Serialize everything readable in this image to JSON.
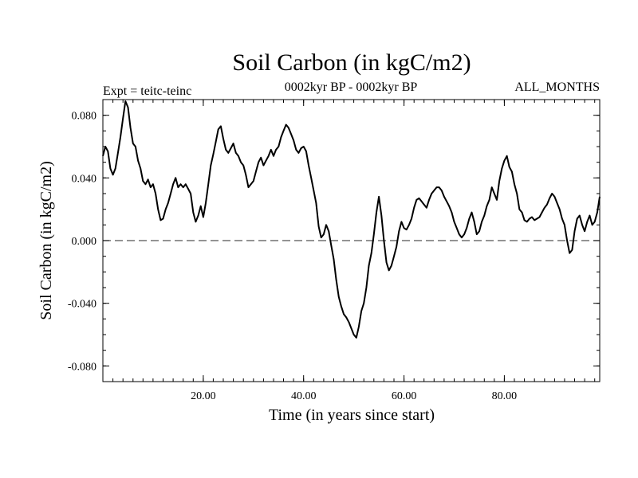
{
  "chart_data": {
    "type": "line",
    "title": "Soil Carbon (in kgC/m2)",
    "subtitle": "0002kyr BP - 0002kyr BP",
    "left_label": "Expt = teitc-teinc",
    "right_label": "ALL_MONTHS",
    "xlabel": "Time (in years since start)",
    "ylabel": "Soil Carbon (in kgC/m2)",
    "xlim": [
      0,
      99
    ],
    "ylim": [
      -0.09,
      0.09
    ],
    "x_major_ticks": [
      20,
      40,
      60,
      80
    ],
    "x_tick_labels": [
      "20.00",
      "40.00",
      "60.00",
      "80.00"
    ],
    "y_major_ticks": [
      0.08,
      0.04,
      0.0,
      -0.04,
      -0.08
    ],
    "y_tick_labels": [
      "0.080",
      "0.040",
      "0.000",
      "-0.040",
      "-0.080"
    ],
    "reference_line": {
      "y": 0.0,
      "style": "dashed"
    },
    "series": [
      {
        "name": "Soil Carbon",
        "x": [
          0,
          0.5,
          1,
          1.5,
          2,
          2.5,
          3,
          3.5,
          4,
          4.5,
          5,
          5.5,
          6,
          6.5,
          7,
          7.5,
          8,
          8.5,
          9,
          9.5,
          10,
          10.5,
          11,
          11.5,
          12,
          12.5,
          13,
          13.5,
          14,
          14.5,
          15,
          15.5,
          16,
          16.5,
          17,
          17.5,
          18,
          18.5,
          19,
          19.5,
          20,
          20.5,
          21,
          21.5,
          22,
          22.5,
          23,
          23.5,
          24,
          24.5,
          25,
          25.5,
          26,
          26.5,
          27,
          27.5,
          28,
          28.5,
          29,
          29.5,
          30,
          30.5,
          31,
          31.5,
          32,
          32.5,
          33,
          33.5,
          34,
          34.5,
          35,
          35.5,
          36,
          36.5,
          37,
          37.5,
          38,
          38.5,
          39,
          39.5,
          40,
          40.5,
          41,
          41.5,
          42,
          42.5,
          43,
          43.5,
          44,
          44.5,
          45,
          45.5,
          46,
          46.5,
          47,
          47.5,
          48,
          48.5,
          49,
          49.5,
          50,
          50.5,
          51,
          51.5,
          52,
          52.5,
          53,
          53.5,
          54,
          54.5,
          55,
          55.5,
          56,
          56.5,
          57,
          57.5,
          58,
          58.5,
          59,
          59.5,
          60,
          60.5,
          61,
          61.5,
          62,
          62.5,
          63,
          63.5,
          64,
          64.5,
          65,
          65.5,
          66,
          66.5,
          67,
          67.5,
          68,
          68.5,
          69,
          69.5,
          70,
          70.5,
          71,
          71.5,
          72,
          72.5,
          73,
          73.5,
          74,
          74.5,
          75,
          75.5,
          76,
          76.5,
          77,
          77.5,
          78,
          78.5,
          79,
          79.5,
          80,
          80.5,
          81,
          81.5,
          82,
          82.5,
          83,
          83.5,
          84,
          84.5,
          85,
          85.5,
          86,
          86.5,
          87,
          87.5,
          88,
          88.5,
          89,
          89.5,
          90,
          90.5,
          91,
          91.5,
          92,
          92.5,
          93,
          93.5,
          94,
          94.5,
          95,
          95.5,
          96,
          96.5,
          97,
          97.5,
          98,
          98.5,
          99
        ],
        "y": [
          0.054,
          0.06,
          0.057,
          0.046,
          0.042,
          0.046,
          0.056,
          0.066,
          0.078,
          0.089,
          0.085,
          0.072,
          0.062,
          0.06,
          0.051,
          0.046,
          0.038,
          0.036,
          0.039,
          0.034,
          0.036,
          0.03,
          0.02,
          0.013,
          0.014,
          0.02,
          0.024,
          0.03,
          0.036,
          0.04,
          0.034,
          0.036,
          0.034,
          0.036,
          0.033,
          0.03,
          0.018,
          0.012,
          0.016,
          0.022,
          0.015,
          0.024,
          0.036,
          0.048,
          0.055,
          0.063,
          0.071,
          0.073,
          0.065,
          0.058,
          0.056,
          0.059,
          0.062,
          0.056,
          0.054,
          0.05,
          0.048,
          0.042,
          0.034,
          0.036,
          0.038,
          0.044,
          0.05,
          0.053,
          0.048,
          0.051,
          0.054,
          0.058,
          0.054,
          0.058,
          0.06,
          0.066,
          0.07,
          0.074,
          0.072,
          0.068,
          0.064,
          0.058,
          0.056,
          0.059,
          0.06,
          0.057,
          0.048,
          0.04,
          0.032,
          0.024,
          0.009,
          0.002,
          0.004,
          0.01,
          0.006,
          -0.003,
          -0.012,
          -0.025,
          -0.036,
          -0.042,
          -0.047,
          -0.049,
          -0.052,
          -0.056,
          -0.06,
          -0.062,
          -0.055,
          -0.045,
          -0.04,
          -0.03,
          -0.016,
          -0.008,
          0.004,
          0.018,
          0.028,
          0.016,
          0.0,
          -0.014,
          -0.019,
          -0.016,
          -0.01,
          -0.004,
          0.006,
          0.012,
          0.008,
          0.007,
          0.01,
          0.014,
          0.021,
          0.026,
          0.027,
          0.025,
          0.023,
          0.021,
          0.026,
          0.03,
          0.032,
          0.034,
          0.034,
          0.032,
          0.028,
          0.025,
          0.022,
          0.018,
          0.012,
          0.008,
          0.004,
          0.002,
          0.004,
          0.008,
          0.014,
          0.018,
          0.012,
          0.004,
          0.006,
          0.012,
          0.016,
          0.022,
          0.026,
          0.034,
          0.03,
          0.026,
          0.038,
          0.046,
          0.051,
          0.054,
          0.047,
          0.044,
          0.036,
          0.03,
          0.02,
          0.018,
          0.013,
          0.012,
          0.014,
          0.015,
          0.013,
          0.014,
          0.015,
          0.018,
          0.021,
          0.023,
          0.027,
          0.03,
          0.028,
          0.024,
          0.02,
          0.014,
          0.01,
          0.0,
          -0.008,
          -0.006,
          0.006,
          0.014,
          0.016,
          0.01,
          0.006,
          0.012,
          0.016,
          0.01,
          0.012,
          0.018,
          0.028
        ]
      }
    ]
  }
}
